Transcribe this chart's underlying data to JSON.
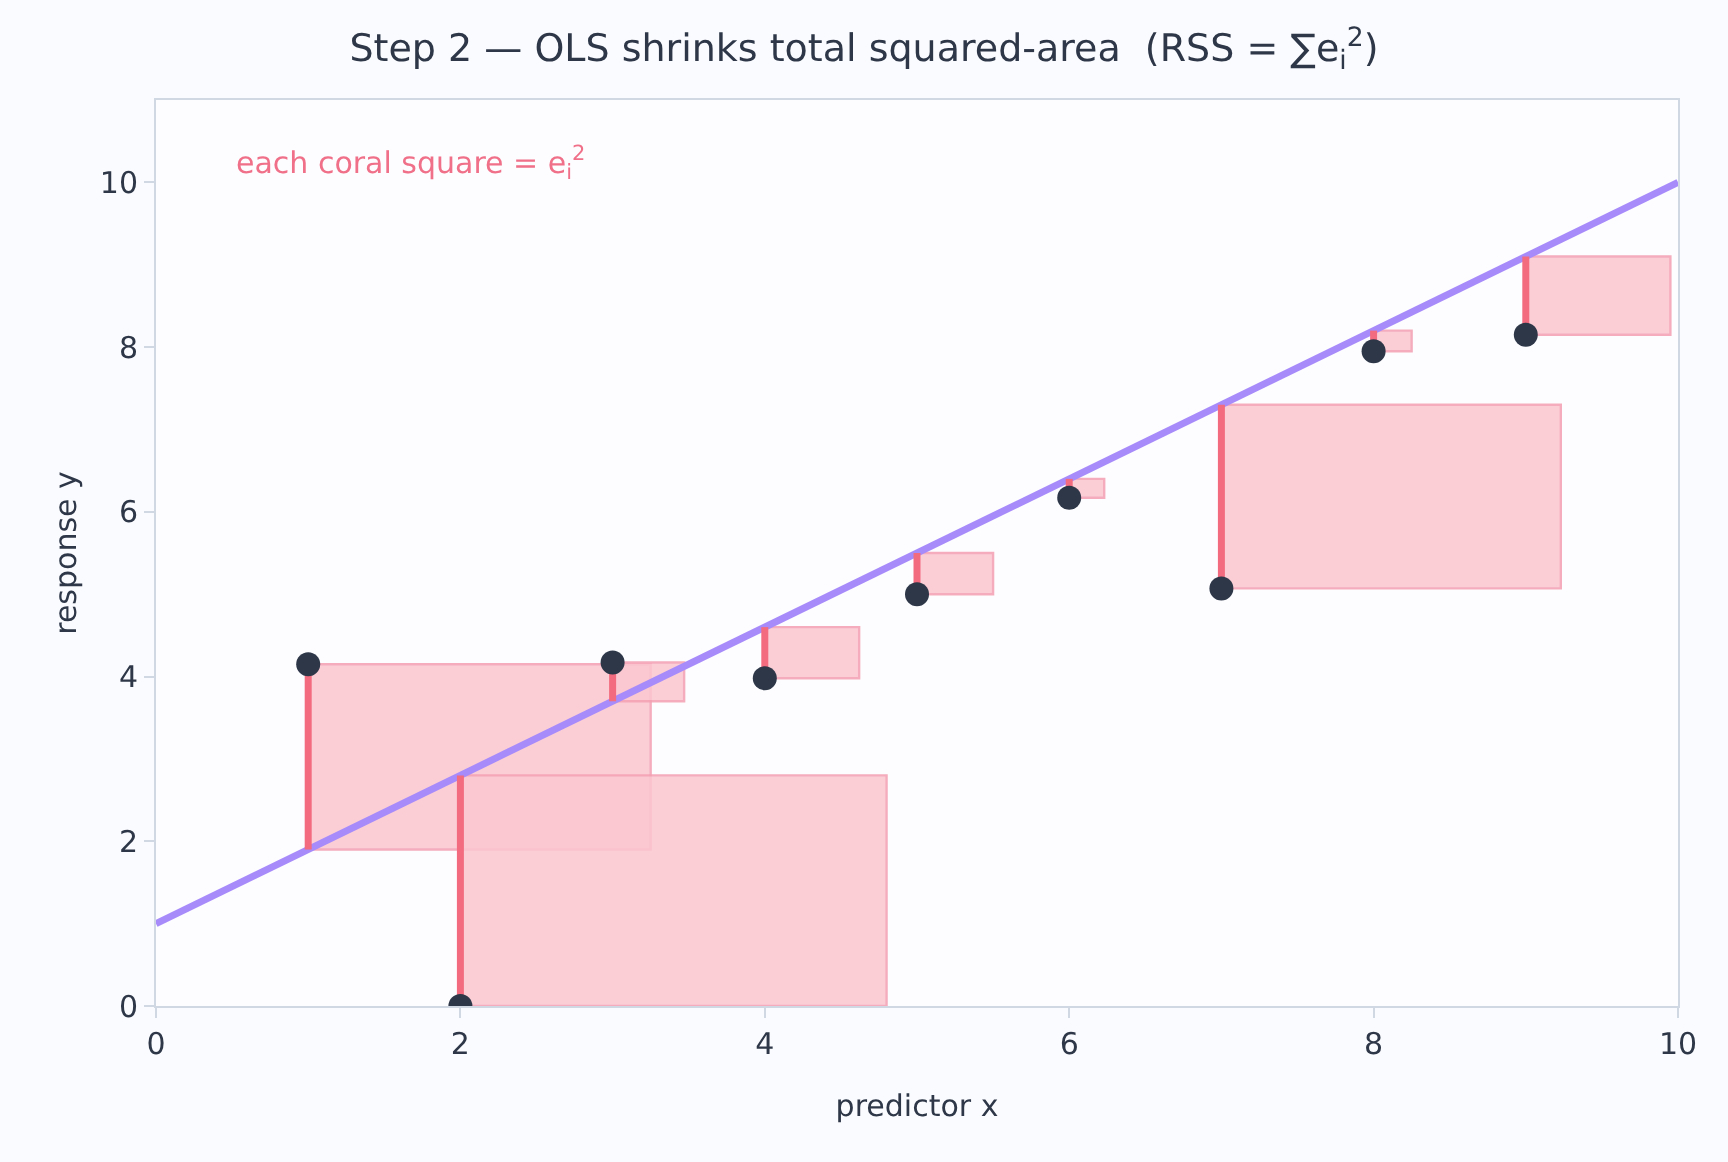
{
  "chart_data": {
    "type": "scatter",
    "title": "Step 2 — OLS shrinks total squared-area  (RSS = ∑e$_{i}$$^{2}$)",
    "xlabel": "predictor x",
    "ylabel": "response y",
    "annotations": [
      "each coral square = e$_{i}$$^{2}$"
    ],
    "x": [
      1,
      2,
      3,
      4,
      5,
      6,
      7,
      8,
      9
    ],
    "series": [
      {
        "type": "bar",
        "color": "#fbc6d0",
        "x": [
          2.125,
          3.235,
          3.4,
          4.31,
          5.25,
          6.115,
          8.115,
          8.125,
          9.475
        ],
        "base": [
          1.9,
          3.7,
          0,
          3.98,
          5.0,
          6.17,
          5.07,
          7.95,
          8.15
        ],
        "values": [
          2.25,
          0.47,
          2.8,
          0.62,
          0.5,
          0.23,
          2.23,
          0.25,
          0.95
        ]
      },
      {
        "type": "line",
        "color": "#a78bfa",
        "marker": "none",
        "x": [
          0,
          10
        ],
        "values": [
          1,
          10
        ]
      },
      {
        "color": "#2d3748",
        "marker": "circle",
        "values": [
          4.15,
          0,
          4.17,
          3.98,
          5.0,
          6.17,
          5.07,
          7.95,
          8.15
        ],
        "errors": [
          [
            1.9,
            4.15
          ],
          [
            0,
            2.8
          ],
          [
            3.7,
            4.17
          ],
          [
            3.98,
            4.6
          ],
          [
            5.0,
            5.5
          ],
          [
            6.17,
            6.4
          ],
          [
            5.07,
            7.3
          ],
          [
            7.95,
            8.2
          ],
          [
            8.15,
            9.1
          ]
        ]
      }
    ],
    "xlim": [
      0,
      10
    ],
    "ylim": [
      0,
      11
    ],
    "xticks": [
      0,
      2,
      4,
      6,
      8,
      10
    ],
    "yticks": [
      0,
      2,
      4,
      6,
      8,
      10
    ],
    "grid": false
  }
}
